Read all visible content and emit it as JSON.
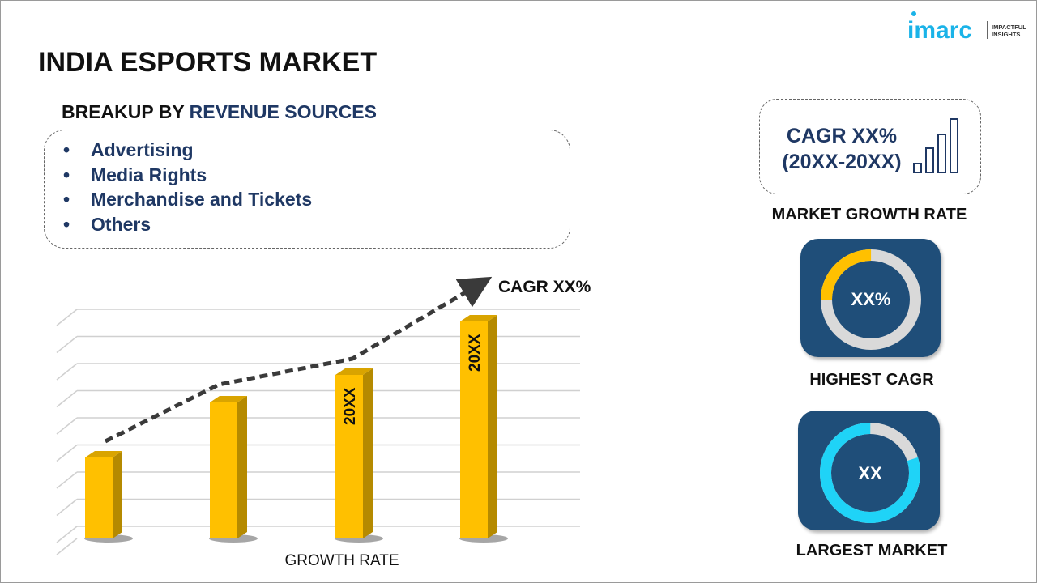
{
  "header": {
    "title": "INDIA ESPORTS MARKET",
    "logo_text": "imarc",
    "logo_tagline": "IMPACTFUL INSIGHTS"
  },
  "breakup": {
    "heading_prefix": "BREAKUP BY",
    "heading_highlight": "REVENUE SOURCES",
    "bullet": "•",
    "items": [
      "Advertising",
      "Media Rights",
      "Merchandise and Tickets",
      "Others"
    ]
  },
  "chart_data": {
    "type": "bar",
    "xlabel": "GROWTH RATE",
    "ylabel": "",
    "title": "",
    "bar_labels": [
      "",
      "",
      "20XX",
      "20XX"
    ],
    "relative_values": [
      1.0,
      1.68,
      2.02,
      2.68
    ],
    "trend_annotation": "CAGR XX%",
    "grid": true,
    "bar_color": "#ffc000"
  },
  "right": {
    "cagr_line1": "CAGR XX%",
    "cagr_line2": "(20XX-20XX)",
    "cagr_caption": "MARKET GROWTH RATE",
    "highest": {
      "value": "XX%",
      "caption": "HIGHEST CAGR",
      "fraction": 0.25,
      "color": "#ffc000"
    },
    "largest": {
      "value": "XX",
      "caption": "LARGEST MARKET",
      "fraction": 0.8,
      "color": "#1fd3f7"
    },
    "tile_color": "#1f4e79"
  }
}
